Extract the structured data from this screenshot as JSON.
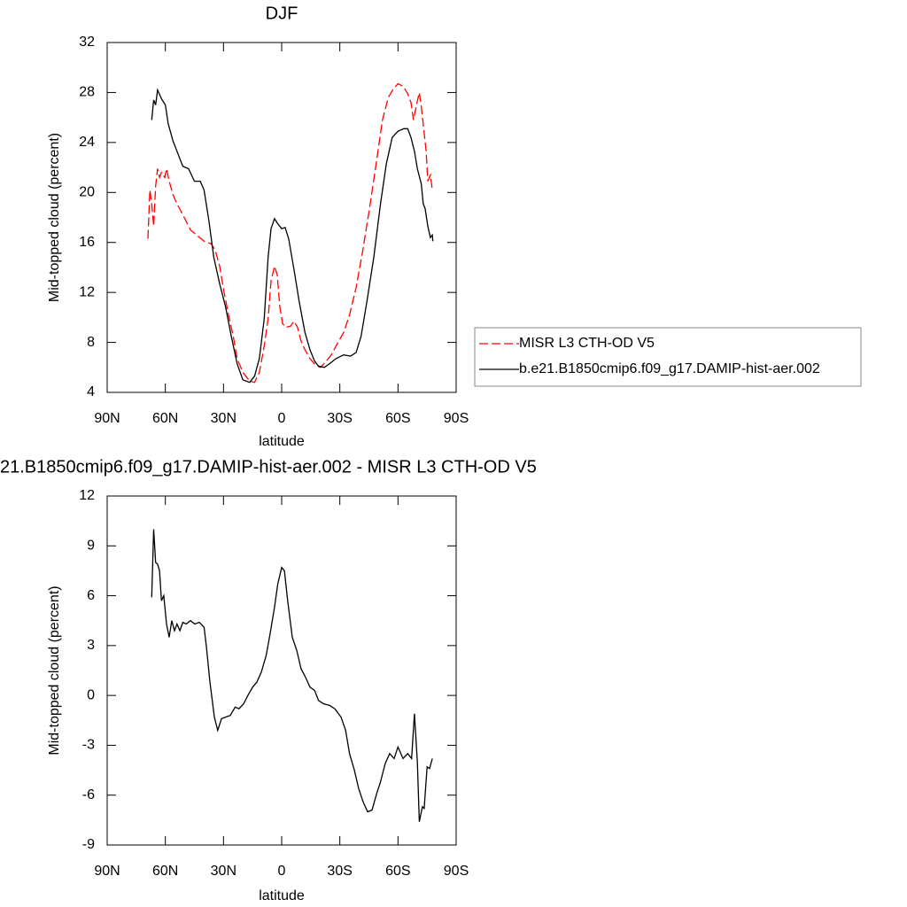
{
  "chart_data": [
    {
      "type": "line",
      "title": "DJF",
      "xlabel": "latitude",
      "ylabel": "Mid-topped cloud (percent)",
      "xlim": [
        90,
        -90
      ],
      "xticks": [
        {
          "value": 90,
          "label": "90N"
        },
        {
          "value": 60,
          "label": "60N"
        },
        {
          "value": 30,
          "label": "30N"
        },
        0,
        {
          "value": -30,
          "label": "30S"
        },
        {
          "value": -60,
          "label": "60S"
        },
        {
          "value": -90,
          "label": "90S"
        }
      ],
      "ylim": [
        4,
        32
      ],
      "yticks": [
        4,
        8,
        12,
        16,
        20,
        24,
        28,
        32
      ],
      "legend": "right",
      "series": [
        {
          "name": "MISR L3 CTH-OD V5",
          "color": "#ff0000",
          "dashed": true,
          "x": [
            69,
            68,
            67,
            66,
            65,
            64,
            63,
            62,
            60.3,
            59.4,
            58,
            56,
            54,
            51.6,
            49.3,
            47,
            44,
            40,
            36.5,
            34.3,
            32,
            29.7,
            27.4,
            25,
            23,
            20,
            16.5,
            14,
            11.5,
            9,
            7,
            5.5,
            3.7,
            2.3,
            1,
            -0.5,
            -2.3,
            -4.6,
            -6.4,
            -8.2,
            -10,
            -12,
            -14.6,
            -17.4,
            -20,
            -23,
            -25.6,
            -28,
            -32,
            -35,
            -38.4,
            -42,
            -45.7,
            -49,
            -52,
            -55,
            -57.6,
            -60,
            -62.6,
            -65,
            -66.7,
            -68,
            -69.4,
            -71,
            -72,
            -73,
            -74.5,
            -75.4,
            -76.7,
            -77.7
          ],
          "values": [
            16.3,
            20.2,
            19.1,
            17.3,
            20.5,
            21.9,
            21.2,
            21.6,
            21.2,
            21.9,
            20.9,
            19.8,
            19.1,
            18.4,
            17.7,
            17.0,
            16.6,
            16.1,
            15.9,
            15.4,
            14.1,
            12.0,
            10.2,
            8.5,
            6.7,
            5.6,
            4.9,
            4.8,
            5.6,
            7.7,
            9.9,
            12.9,
            14.1,
            13.4,
            10.9,
            9.5,
            9.2,
            9.3,
            9.7,
            9.2,
            8.1,
            7.4,
            6.7,
            6.2,
            6.0,
            6.5,
            7.0,
            7.7,
            8.8,
            10.2,
            12.4,
            15.5,
            19.1,
            22.6,
            25.8,
            27.6,
            28.3,
            28.7,
            28.5,
            27.9,
            27.2,
            25.8,
            26.9,
            28.0,
            26.9,
            25.5,
            23.3,
            20.9,
            21.4,
            20.2
          ]
        },
        {
          "name": "b.e21.B1850cmip6.f09_g17.DAMIP-hist-aer.002",
          "color": "#000000",
          "dashed": false,
          "x": [
            67,
            66,
            65,
            64,
            62,
            60,
            58.5,
            56,
            54,
            51,
            48,
            45,
            42,
            40,
            37.5,
            35,
            32,
            29,
            26,
            23,
            20,
            16.5,
            14,
            11.5,
            9,
            7,
            5.5,
            3.7,
            2,
            0,
            -1.8,
            -3.6,
            -6.4,
            -9,
            -12,
            -14.6,
            -17,
            -19,
            -22,
            -24.7,
            -28,
            -32,
            -35.6,
            -38.4,
            -41,
            -44,
            -47.5,
            -51,
            -54,
            -57,
            -60,
            -63,
            -65,
            -66.7,
            -68.5,
            -70,
            -72,
            -73,
            -74,
            -75.4,
            -76.7,
            -77.7,
            -78
          ],
          "values": [
            25.8,
            27.4,
            27.0,
            28.2,
            27.5,
            27.0,
            25.5,
            24.1,
            23.3,
            22.1,
            21.9,
            20.9,
            20.9,
            20.2,
            17.7,
            14.8,
            12.7,
            10.9,
            8.5,
            6.3,
            5.0,
            4.8,
            5.3,
            6.7,
            9.9,
            14.8,
            17.1,
            17.9,
            17.5,
            17.1,
            17.2,
            16.3,
            13.8,
            11.3,
            8.8,
            7.4,
            6.5,
            6.1,
            6.0,
            6.3,
            6.7,
            7.0,
            6.9,
            7.2,
            8.5,
            11.3,
            14.8,
            19.1,
            22.3,
            24.4,
            24.9,
            25.1,
            25.1,
            24.4,
            23.3,
            21.9,
            20.7,
            19.1,
            18.7,
            17.3,
            16.4,
            16.6,
            16.1
          ]
        }
      ]
    },
    {
      "type": "line",
      "title": "21.B1850cmip6.f09_g17.DAMIP-hist-aer.002 - MISR L3 CTH-OD V5",
      "xlabel": "latitude",
      "ylabel": "Mid-topped cloud (percent)",
      "xlim": [
        90,
        -90
      ],
      "xticks": [
        {
          "value": 90,
          "label": "90N"
        },
        {
          "value": 60,
          "label": "60N"
        },
        {
          "value": 30,
          "label": "30N"
        },
        0,
        {
          "value": -30,
          "label": "30S"
        },
        {
          "value": -60,
          "label": "60S"
        },
        {
          "value": -90,
          "label": "90S"
        }
      ],
      "ylim": [
        -9,
        12
      ],
      "yticks": [
        -9,
        -6,
        -3,
        0,
        3,
        6,
        9,
        12
      ],
      "series": [
        {
          "color": "#000000",
          "dashed": false,
          "x": [
            67,
            66,
            65,
            64,
            63,
            62,
            60.8,
            59.4,
            58,
            56.7,
            55.3,
            54,
            52.5,
            51,
            49.3,
            47,
            44.8,
            42.5,
            40,
            38.8,
            37,
            34.7,
            33,
            31,
            28.8,
            26.5,
            24,
            22,
            19.6,
            17.4,
            15,
            12.8,
            10.5,
            8,
            6,
            3.7,
            2,
            0,
            -1.4,
            -3.2,
            -5.5,
            -7.8,
            -10,
            -12.3,
            -14.6,
            -17,
            -19,
            -21.5,
            -24.7,
            -27.4,
            -30.6,
            -33,
            -35,
            -37.5,
            -39.7,
            -42,
            -44.3,
            -46.6,
            -49,
            -51,
            -53.4,
            -55.7,
            -58,
            -60,
            -62.6,
            -65,
            -67,
            -68.5,
            -70,
            -71,
            -72.6,
            -73.5,
            -75,
            -76.3,
            -77.7
          ],
          "values": [
            5.9,
            10.0,
            8.0,
            7.9,
            7.5,
            5.7,
            6.0,
            4.3,
            3.5,
            4.5,
            3.9,
            4.3,
            3.9,
            4.4,
            4.3,
            4.5,
            4.3,
            4.4,
            4.1,
            2.9,
            0.8,
            -1.3,
            -2.1,
            -1.4,
            -1.3,
            -1.2,
            -0.7,
            -0.8,
            -0.5,
            0.0,
            0.5,
            0.8,
            1.4,
            2.4,
            3.7,
            5.3,
            6.7,
            7.7,
            7.5,
            5.6,
            3.5,
            2.7,
            1.6,
            1.1,
            0.5,
            0.3,
            -0.3,
            -0.5,
            -0.6,
            -0.8,
            -1.3,
            -2.1,
            -3.5,
            -4.5,
            -5.6,
            -6.4,
            -7.0,
            -6.9,
            -5.9,
            -5.2,
            -4.1,
            -3.5,
            -3.8,
            -3.1,
            -3.8,
            -3.5,
            -3.8,
            -1.1,
            -4.0,
            -7.6,
            -6.7,
            -6.8,
            -4.3,
            -4.4,
            -3.8
          ]
        }
      ]
    }
  ]
}
